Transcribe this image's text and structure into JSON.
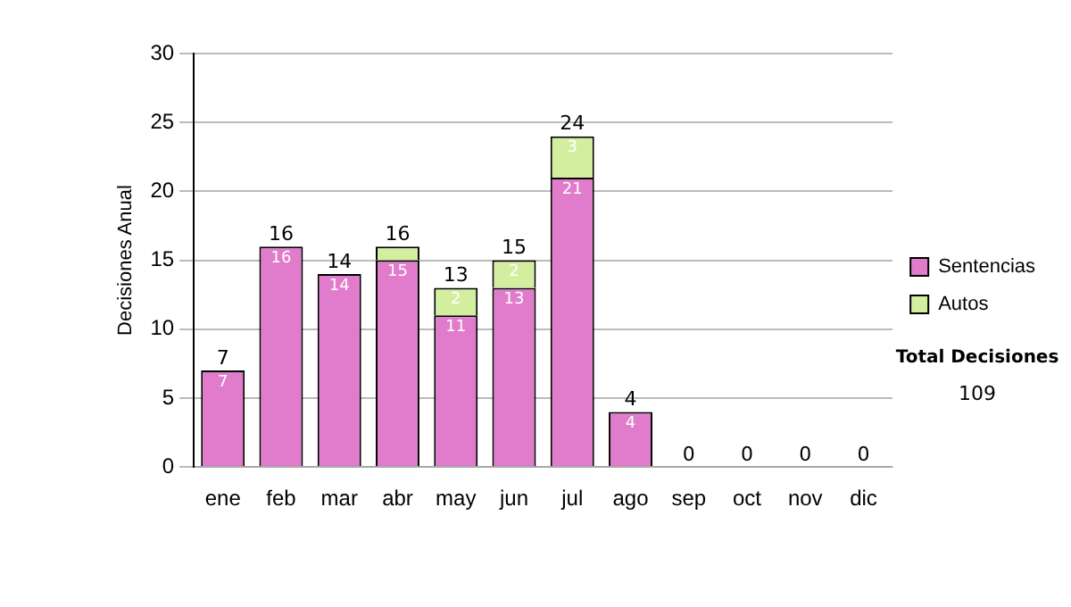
{
  "chart_data": {
    "type": "bar",
    "stacked": true,
    "ylabel": "Decisiones Anual",
    "categories": [
      "ene",
      "feb",
      "mar",
      "abr",
      "may",
      "jun",
      "jul",
      "ago",
      "sep",
      "oct",
      "nov",
      "dic"
    ],
    "series": [
      {
        "name": "Sentencias",
        "color": "#e07ccb",
        "values": [
          7,
          16,
          14,
          15,
          11,
          13,
          21,
          4,
          0,
          0,
          0,
          0
        ],
        "value_labels": [
          "7",
          "16",
          "14",
          "15",
          "11",
          "13",
          "21",
          "4",
          null,
          null,
          null,
          null
        ]
      },
      {
        "name": "Autos",
        "color": "#d4eea0",
        "values": [
          0,
          0,
          0,
          1,
          2,
          2,
          3,
          0,
          0,
          0,
          0,
          0
        ],
        "value_labels": [
          null,
          null,
          null,
          null,
          "2",
          "2",
          "3",
          null,
          null,
          null,
          null,
          null
        ]
      }
    ],
    "totals": [
      "7",
      "16",
      "14",
      "16",
      "13",
      "15",
      "24",
      "4",
      "0",
      "0",
      "0",
      "0"
    ],
    "ylim": [
      0,
      30
    ],
    "yticks": [
      0,
      5,
      10,
      15,
      20,
      25,
      30
    ],
    "grid": "y",
    "legend": "right",
    "annotations": [
      "Total Decisiones",
      "109"
    ]
  }
}
